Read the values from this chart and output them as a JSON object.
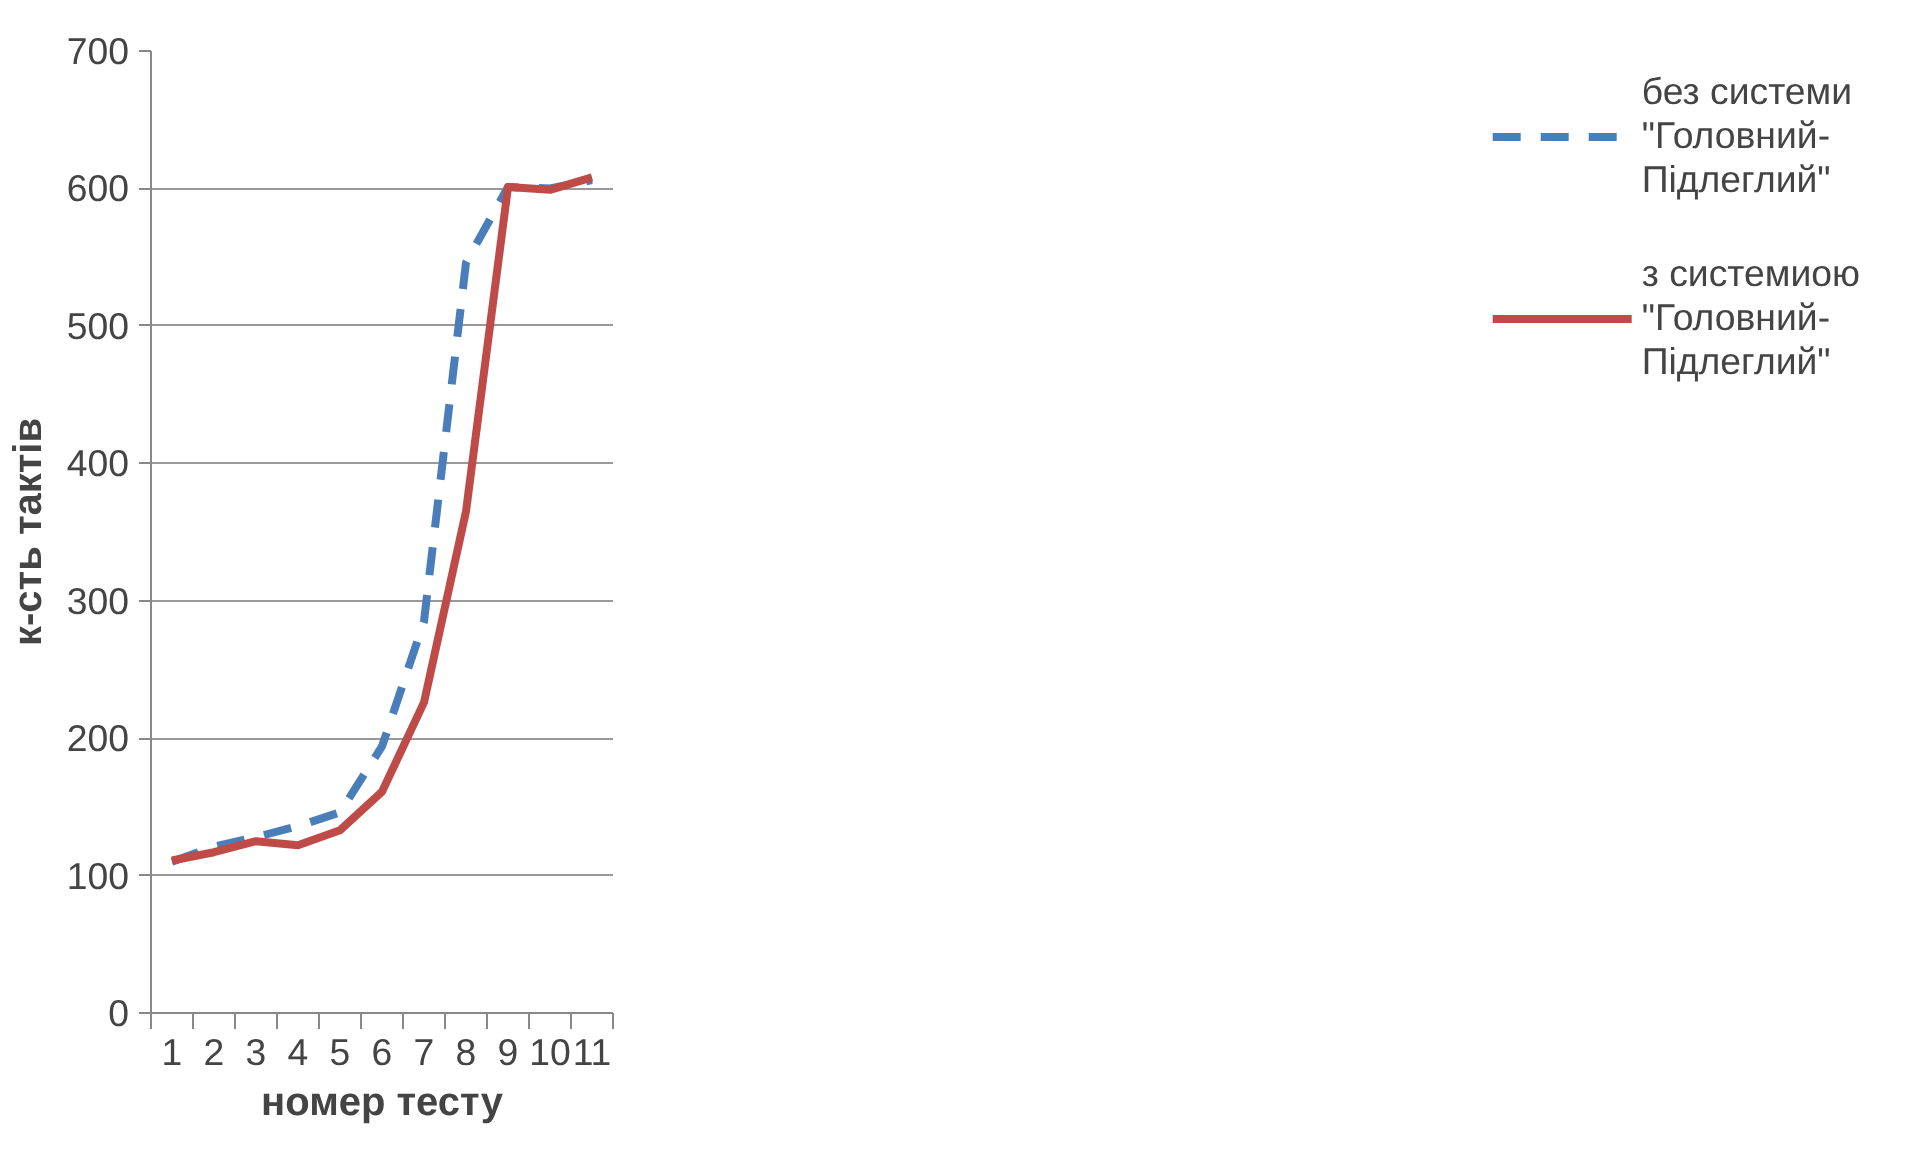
{
  "chart_data": {
    "type": "line",
    "xlabel": "номер тесту",
    "ylabel": "к-сть тактів",
    "categories": [
      "1",
      "2",
      "3",
      "4",
      "5",
      "6",
      "7",
      "8",
      "9",
      "10",
      "11"
    ],
    "ylim": [
      0,
      700
    ],
    "yticks": [
      0,
      100,
      200,
      300,
      400,
      500,
      600,
      700
    ],
    "grid": "y",
    "legend": "right",
    "series": [
      {
        "name": "без системи \"Головний-Підлеглий\"",
        "color": "#4a7ebb",
        "line_style": "dashed",
        "values": [
          110,
          121,
          128,
          136,
          146,
          194,
          285,
          546,
          601,
          600,
          606
        ]
      },
      {
        "name": "з системиою \"Головний-Підлеглий\"",
        "color": "#be4b48",
        "line_style": "solid",
        "values": [
          111,
          117,
          125,
          122,
          133,
          161,
          226,
          365,
          601,
          599,
          608
        ]
      }
    ]
  }
}
